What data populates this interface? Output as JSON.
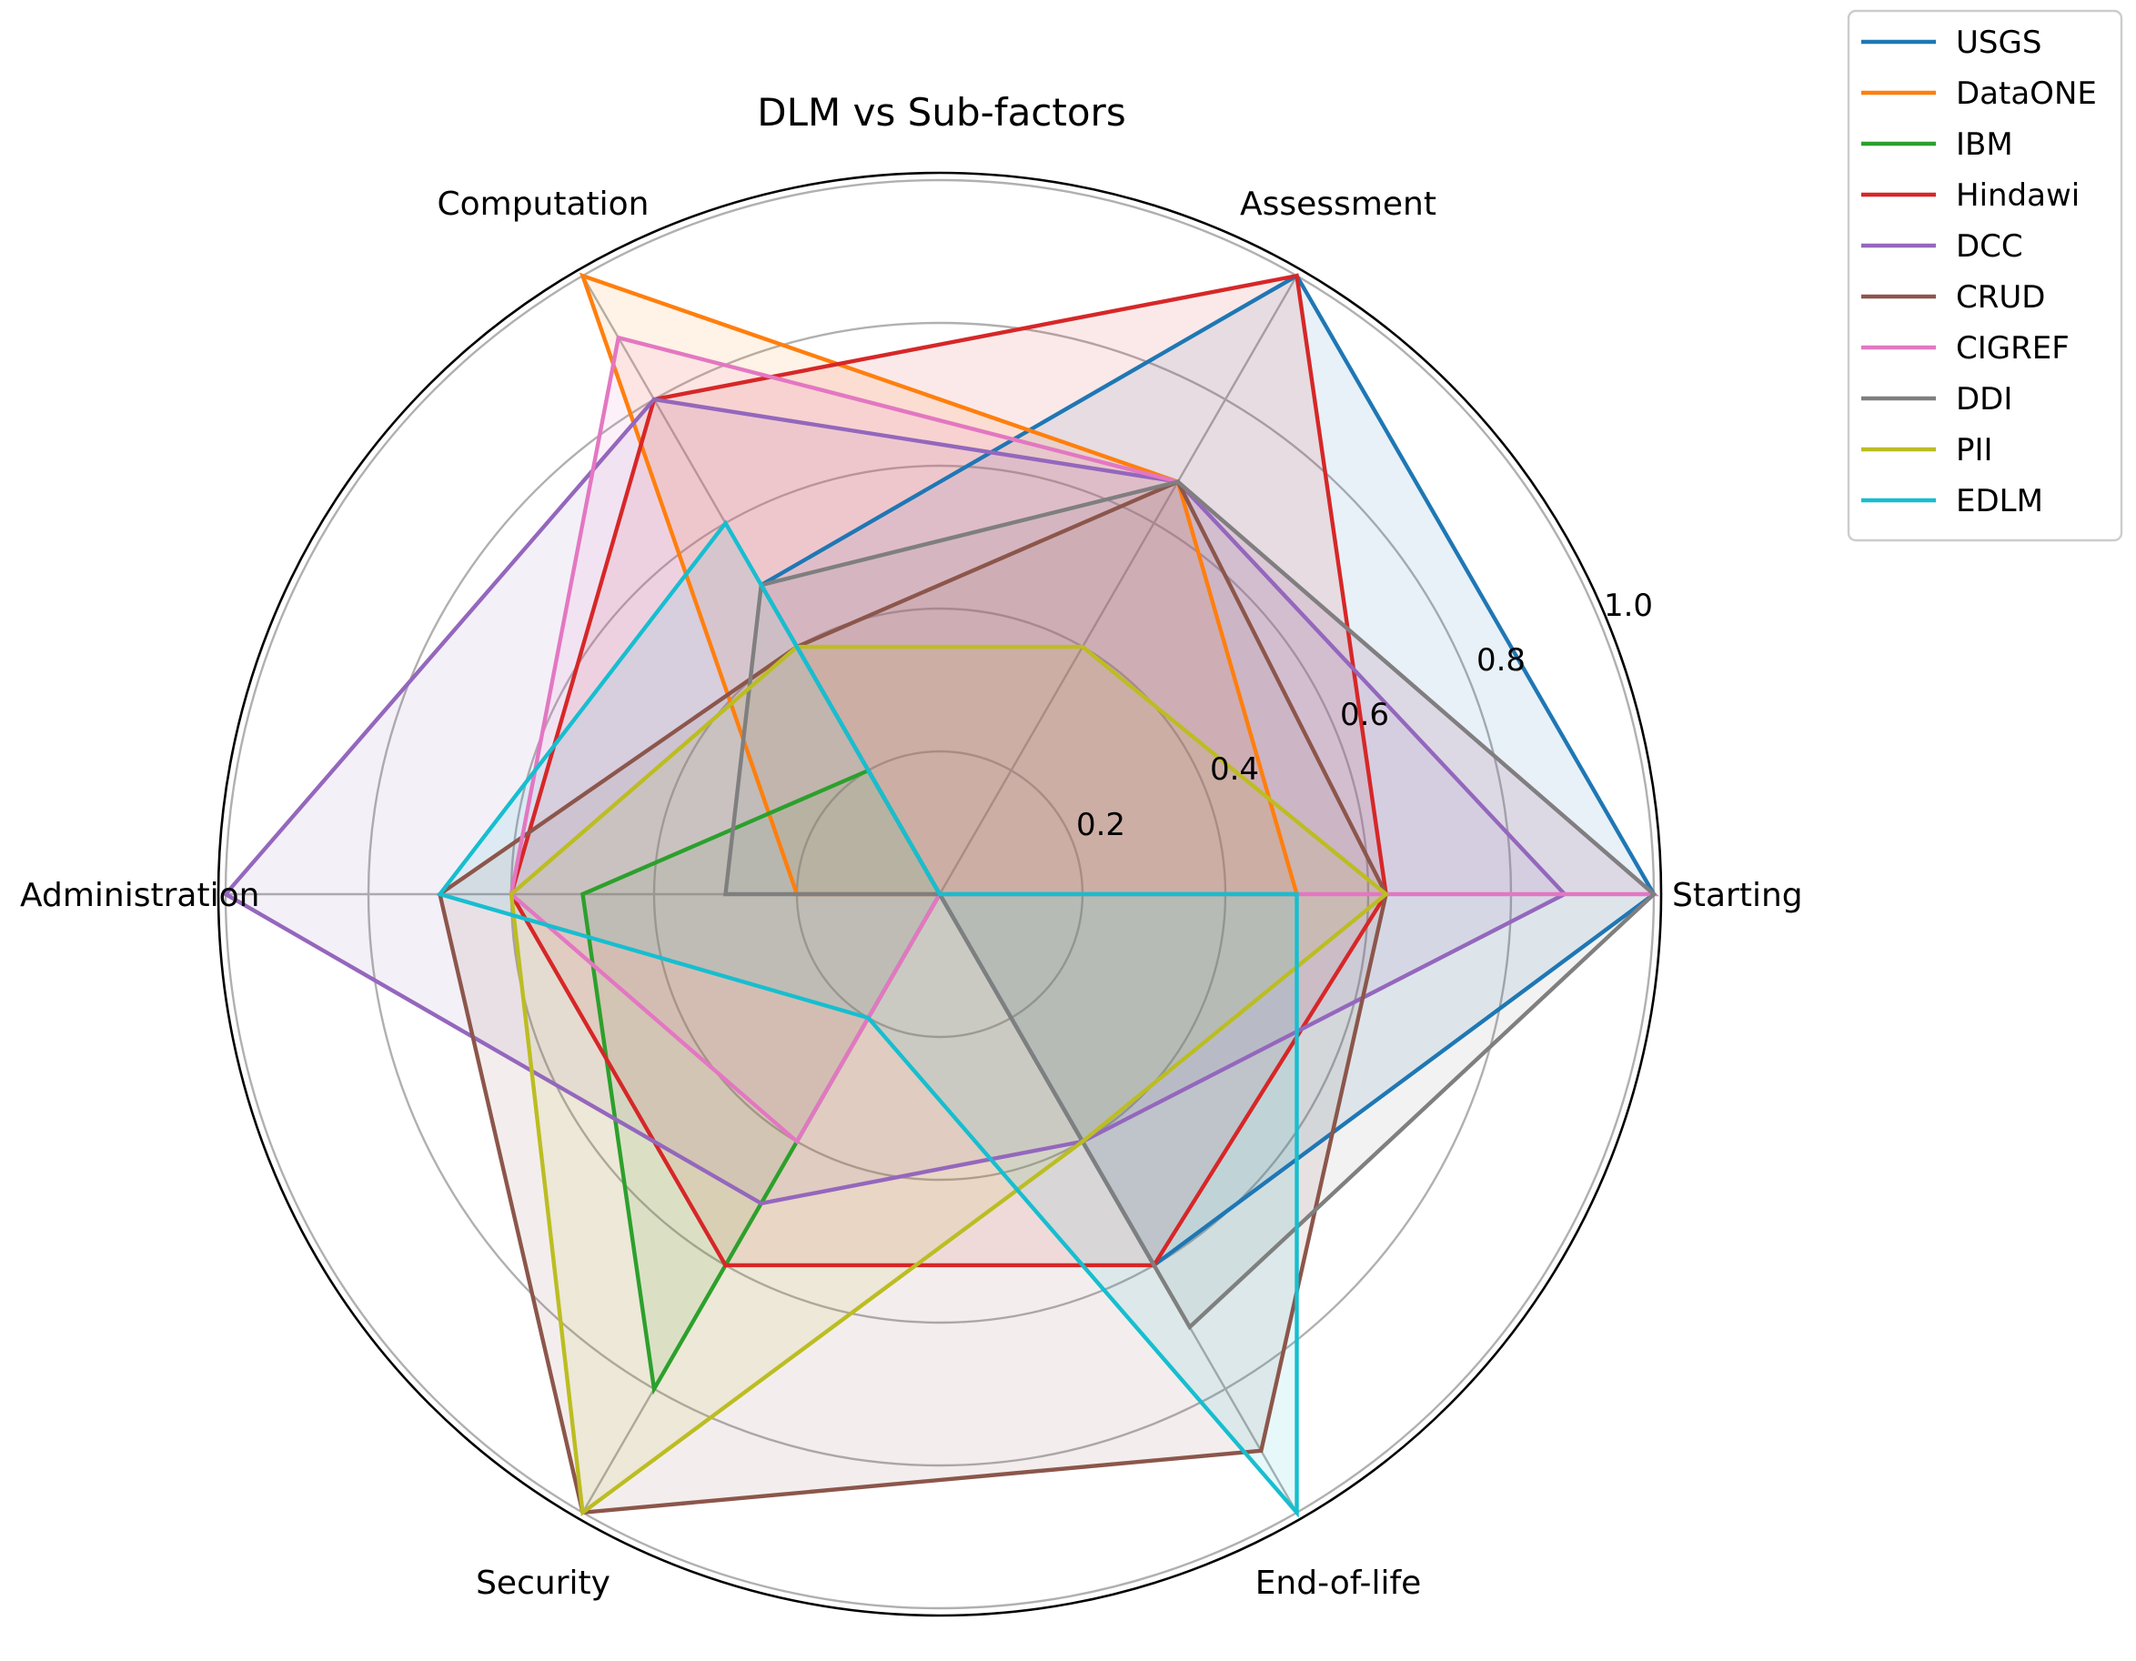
{
  "chart_data": {
    "type": "radar",
    "title": "DLM vs Sub-factors",
    "axes": [
      "Starting",
      "Assessment",
      "Computation",
      "Administration",
      "Security",
      "End-of-life"
    ],
    "radial_ticks": [
      "0.2",
      "0.4",
      "0.6",
      "0.8",
      "1.0"
    ],
    "radial_tick_values": [
      0.2,
      0.4,
      0.6,
      0.8,
      1.0
    ],
    "rmax": 1.0,
    "grid": true,
    "legend_position": "top-right",
    "series": [
      {
        "name": "USGS",
        "color": "#1f77b4",
        "values": [
          1.0,
          1.0,
          0.5,
          0.0,
          0.0,
          0.6
        ]
      },
      {
        "name": "DataONE",
        "color": "#ff7f0e",
        "values": [
          0.5,
          0.667,
          1.0,
          0.2,
          0.0,
          0.0
        ]
      },
      {
        "name": "IBM",
        "color": "#2ca02c",
        "values": [
          0.0,
          0.0,
          0.2,
          0.5,
          0.8,
          0.0
        ]
      },
      {
        "name": "Hindawi",
        "color": "#d62728",
        "values": [
          0.625,
          1.0,
          0.8,
          0.6,
          0.6,
          0.6
        ]
      },
      {
        "name": "DCC",
        "color": "#9467bd",
        "values": [
          0.875,
          0.667,
          0.8,
          1.0,
          0.5,
          0.4
        ]
      },
      {
        "name": "CRUD",
        "color": "#8c564b",
        "values": [
          0.625,
          0.667,
          0.4,
          0.7,
          1.0,
          0.9
        ]
      },
      {
        "name": "CIGREF",
        "color": "#e377c2",
        "values": [
          1.0,
          0.667,
          0.9,
          0.6,
          0.4,
          0.0
        ]
      },
      {
        "name": "DDI",
        "color": "#7f7f7f",
        "values": [
          1.0,
          0.667,
          0.5,
          0.3,
          0.0,
          0.7
        ]
      },
      {
        "name": "PII",
        "color": "#bcbd22",
        "values": [
          0.625,
          0.4,
          0.4,
          0.6,
          1.0,
          0.4
        ]
      },
      {
        "name": "EDLM",
        "color": "#17becf",
        "values": [
          0.5,
          0.0,
          0.6,
          0.7,
          0.2,
          1.0
        ]
      }
    ]
  }
}
